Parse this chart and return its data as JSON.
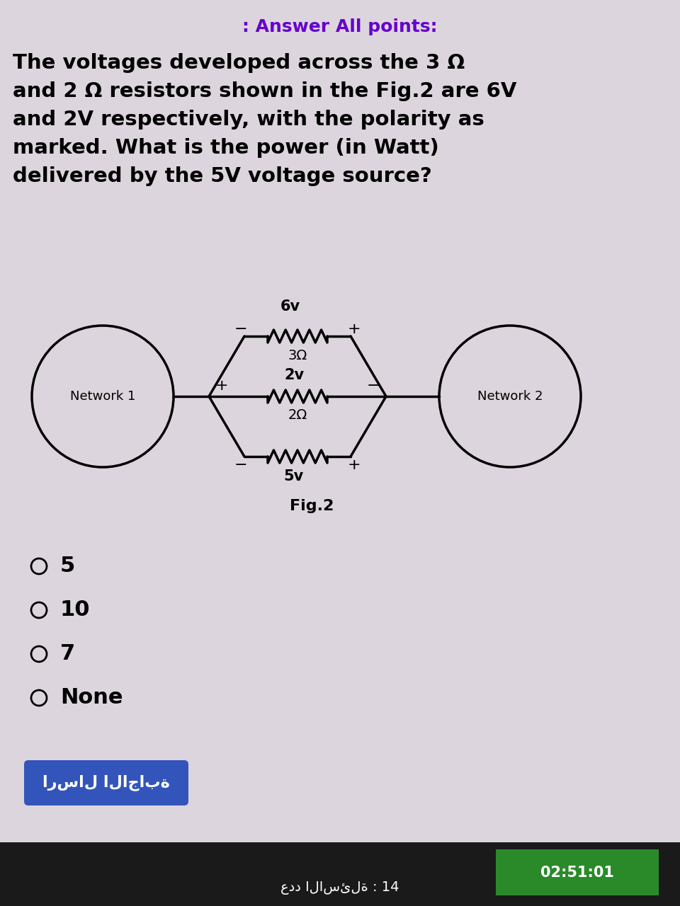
{
  "header_text": ": Answer All points:",
  "header_color": "#6600cc",
  "question_text": "The voltages developed across the 3 Ω\nand 2 Ω resistors shown in the Fig.2 are 6V\nand 2V respectively, with the polarity as\nmarked. What is the power (in Watt)\ndelivered by the 5V voltage source?",
  "question_fontsize": 21,
  "question_color": "#000000",
  "fig_label": "Fig.2",
  "options": [
    "5",
    "10",
    "7",
    "None"
  ],
  "submit_button_text": "ارسال الاجابة",
  "submit_button_color": "#3355bb",
  "submit_button_text_color": "#ffffff",
  "timer_text": "02:51:01",
  "timer_bg": "#2a8a2a",
  "bottom_bar_bg": "#1a1a1a",
  "bottom_text": "عدد الاسئلة : 14",
  "bg_color": "#ddd5dd",
  "network1_label": "Network 1",
  "network2_label": "Network 2",
  "resistor_3ohm_label": "3Ω",
  "resistor_2ohm_label": "2Ω",
  "resistor_5v_label": "5v",
  "voltage_6v": "6v",
  "voltage_2v": "2v"
}
